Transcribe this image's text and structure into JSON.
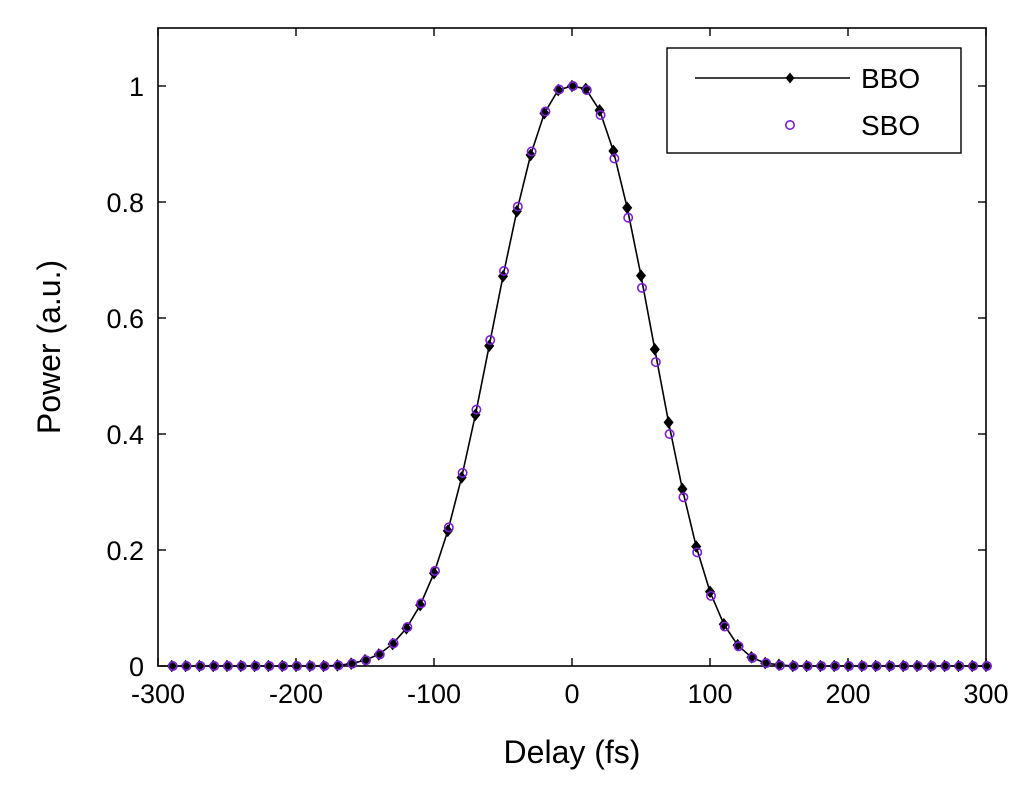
{
  "colors": {
    "bbo": "#000000",
    "sbo": "#7b1fd6",
    "axis": "#000000",
    "background": "#ffffff"
  },
  "chart_data": {
    "type": "line",
    "title": "",
    "xlabel": "Delay (fs)",
    "ylabel": "Power (a.u.)",
    "xlim": [
      -300,
      300
    ],
    "ylim": [
      0,
      1.1
    ],
    "xticks": [
      -300,
      -200,
      -100,
      0,
      100,
      200,
      300
    ],
    "xtick_labels": [
      "-300",
      "-200",
      "-100",
      "0",
      "100",
      "200",
      "300"
    ],
    "yticks": [
      0,
      0.2,
      0.4,
      0.6,
      0.8,
      1
    ],
    "ytick_labels": [
      "0",
      "0.2",
      "0.4",
      "0.6",
      "0.8",
      "1"
    ],
    "grid": false,
    "legend_position": "top-right",
    "series": [
      {
        "name": "BBO",
        "style": "line-diamond-markers",
        "x": [
          -290,
          -280,
          -270,
          -260,
          -250,
          -240,
          -230,
          -220,
          -210,
          -200,
          -190,
          -180,
          -170,
          -160,
          -150,
          -140,
          -130,
          -120,
          -110,
          -100,
          -90,
          -80,
          -70,
          -60,
          -50,
          -40,
          -30,
          -20,
          -10,
          0,
          10,
          20,
          30,
          40,
          50,
          60,
          70,
          80,
          90,
          100,
          110,
          120,
          130,
          140,
          150,
          160,
          170,
          180,
          190,
          200,
          210,
          220,
          230,
          240,
          250,
          260,
          270,
          280,
          290,
          300
        ],
        "y": [
          0,
          0,
          0,
          0,
          0,
          0,
          0,
          0,
          0,
          0,
          0,
          0,
          0.001,
          0.004,
          0.01,
          0.02,
          0.038,
          0.065,
          0.105,
          0.16,
          0.233,
          0.325,
          0.433,
          0.552,
          0.672,
          0.784,
          0.881,
          0.953,
          0.993,
          1.0,
          0.995,
          0.958,
          0.888,
          0.79,
          0.673,
          0.546,
          0.42,
          0.305,
          0.206,
          0.128,
          0.072,
          0.036,
          0.015,
          0.005,
          0.002,
          0,
          0,
          0,
          0,
          0,
          0,
          0,
          0,
          0,
          0,
          0,
          0,
          0,
          0,
          0
        ]
      },
      {
        "name": "SBO",
        "style": "open-circle-markers",
        "x": [
          -290,
          -280,
          -270,
          -260,
          -250,
          -240,
          -230,
          -220,
          -210,
          -200,
          -190,
          -180,
          -170,
          -160,
          -150,
          -140,
          -130,
          -120,
          -110,
          -100,
          -90,
          -80,
          -70,
          -60,
          -50,
          -40,
          -30,
          -20,
          -10,
          0,
          10,
          20,
          30,
          40,
          50,
          60,
          70,
          80,
          90,
          100,
          110,
          120,
          130,
          140,
          150,
          160,
          170,
          180,
          190,
          200,
          210,
          220,
          230,
          240,
          250,
          260,
          270,
          280,
          290,
          300
        ],
        "y": [
          0,
          0,
          0,
          0,
          0,
          0,
          0,
          0,
          0,
          0,
          0,
          0,
          0.001,
          0.004,
          0.01,
          0.02,
          0.039,
          0.067,
          0.108,
          0.164,
          0.239,
          0.333,
          0.442,
          0.562,
          0.681,
          0.792,
          0.887,
          0.956,
          0.994,
          1.0,
          0.993,
          0.95,
          0.875,
          0.773,
          0.652,
          0.524,
          0.4,
          0.291,
          0.196,
          0.121,
          0.068,
          0.034,
          0.014,
          0.005,
          0.001,
          0,
          0,
          0,
          0,
          0,
          0,
          0,
          0,
          0,
          0,
          0,
          0,
          0,
          0,
          0
        ]
      }
    ]
  }
}
